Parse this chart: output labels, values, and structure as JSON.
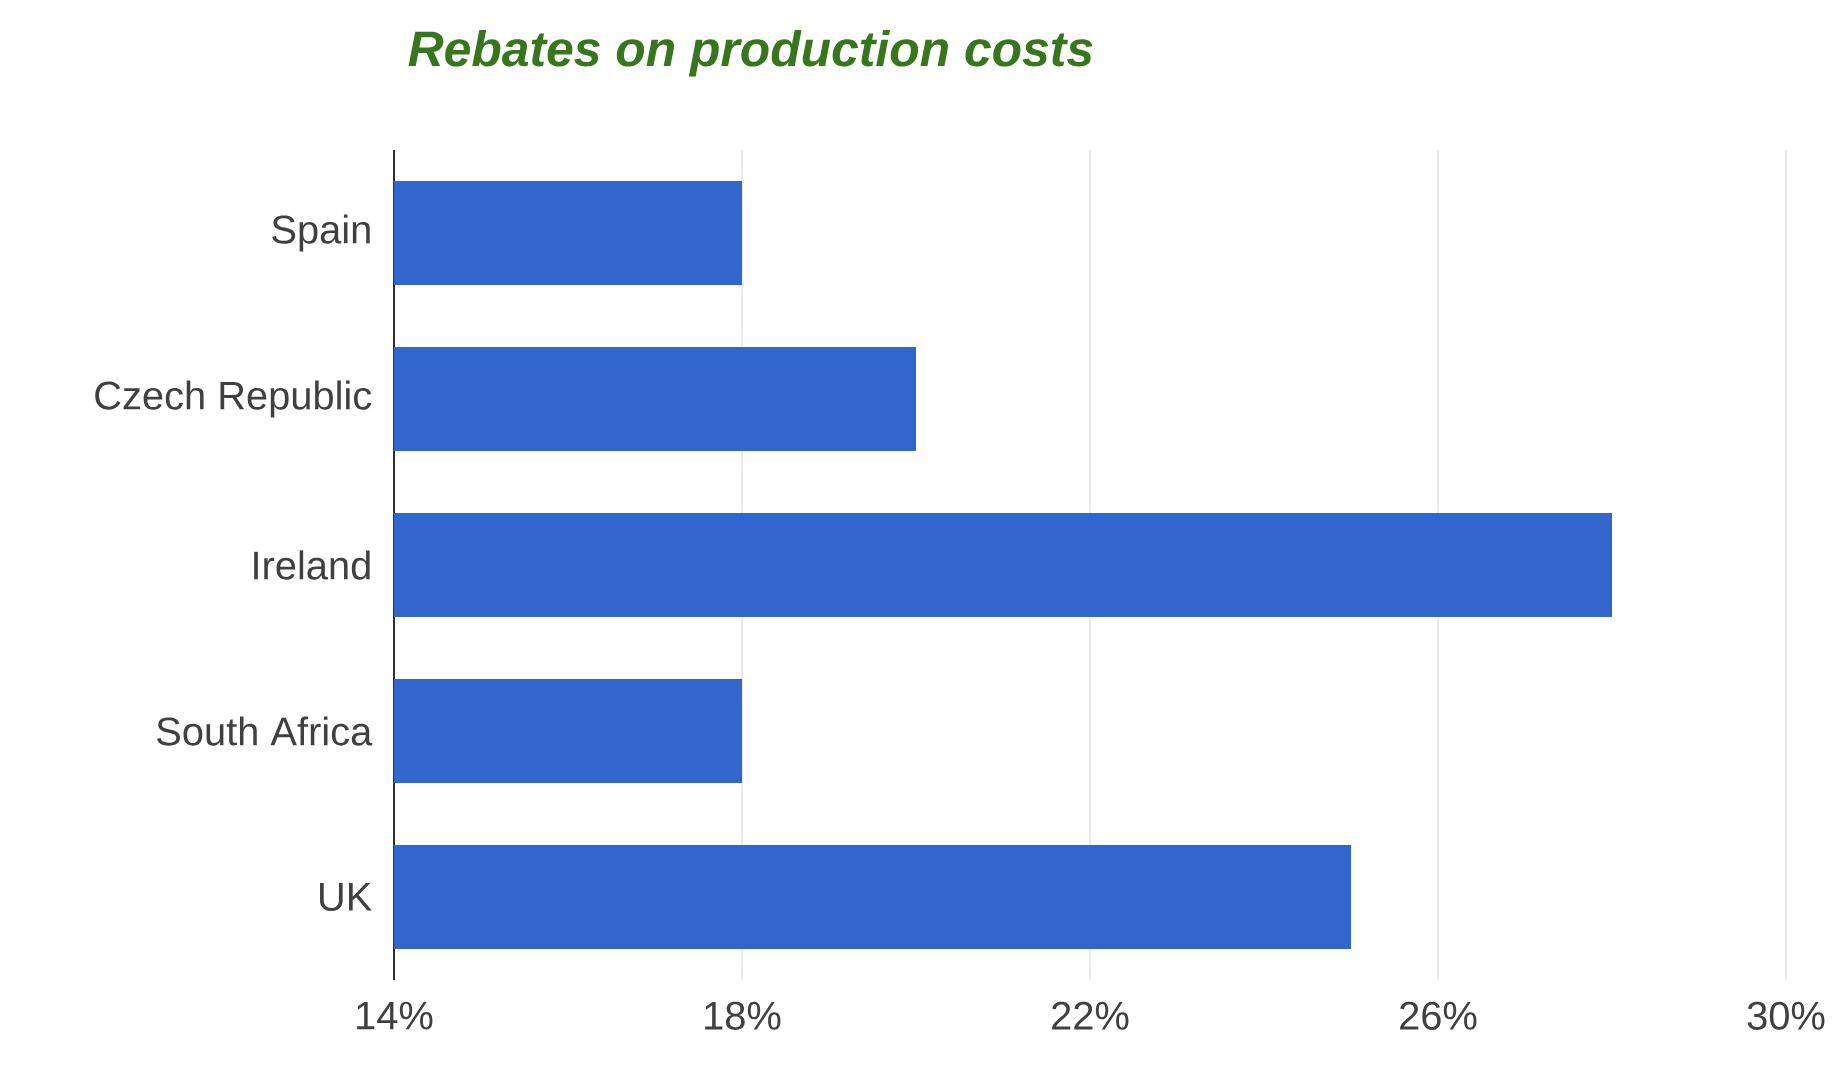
{
  "chart_data": {
    "type": "bar",
    "orientation": "horizontal",
    "title": "Rebates on production costs",
    "categories": [
      "Spain",
      "Czech Republic",
      "Ireland",
      "South Africa",
      "UK"
    ],
    "values": [
      18,
      20,
      28,
      18,
      25
    ],
    "color": "#3366cc",
    "xlim": [
      14,
      30
    ],
    "xticks": [
      {
        "value": 14,
        "label": "14%"
      },
      {
        "value": 18,
        "label": "18%"
      },
      {
        "value": 22,
        "label": "22%"
      },
      {
        "value": 26,
        "label": "26%"
      },
      {
        "value": 30,
        "label": "30%"
      }
    ],
    "grid": "x"
  }
}
